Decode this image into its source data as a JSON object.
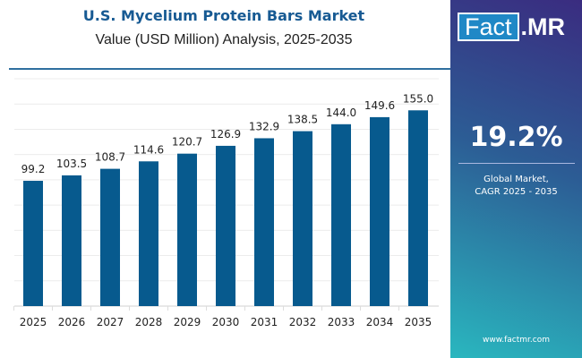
{
  "chart_data": {
    "type": "bar",
    "title": "U.S. Mycelium Protein Bars Market",
    "subtitle": "Value (USD Million) Analysis, 2025-2035",
    "categories": [
      "2025",
      "2026",
      "2027",
      "2028",
      "2029",
      "2030",
      "2031",
      "2032",
      "2033",
      "2034",
      "2035"
    ],
    "values": [
      99.2,
      103.5,
      108.7,
      114.6,
      120.7,
      126.9,
      132.9,
      138.5,
      144.0,
      149.6,
      155.0
    ],
    "value_labels": [
      "99.2",
      "103.5",
      "108.7",
      "114.6",
      "120.7",
      "126.9",
      "132.9",
      "138.5",
      "144.0",
      "149.6",
      "155.0"
    ],
    "xlabel": "",
    "ylabel": "",
    "ylim": [
      0,
      180
    ],
    "grid": true,
    "bar_color": "#075a8e"
  },
  "brand": {
    "logo": "Fact.MR",
    "logo_left": "Fact",
    "logo_right": ".MR",
    "url": "www.factmr.com"
  },
  "side": {
    "cagr": "19.2%",
    "label_line1": "Global Market,",
    "label_line2": "CAGR 2025 - 2035"
  }
}
